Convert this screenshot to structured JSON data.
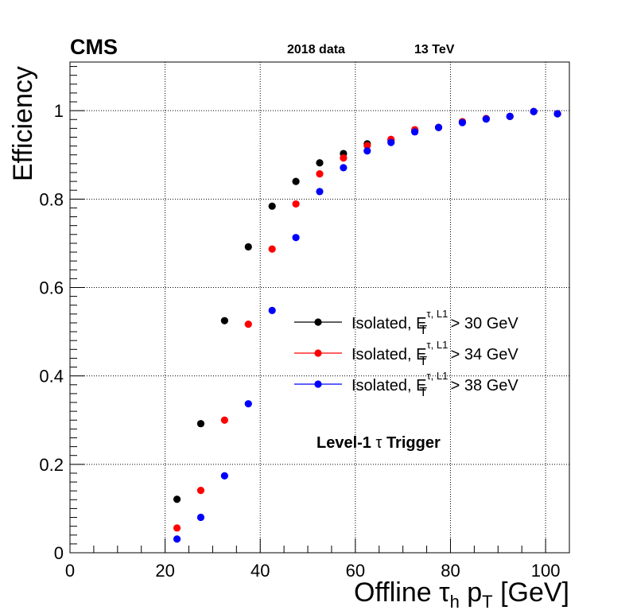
{
  "header": {
    "experiment": "CMS",
    "dataset": "2018 data",
    "energy": "13 TeV"
  },
  "chart_data": {
    "type": "scatter",
    "title": "",
    "xlabel": {
      "prefix": "Offline ",
      "tau": "τ",
      "sub": "h",
      "p": " p",
      "psub": "T",
      "suffix": " [GeV]"
    },
    "ylabel": "Efficiency",
    "xlim": [
      0,
      105
    ],
    "ylim": [
      0,
      1.11
    ],
    "grid": true,
    "x_ticks": [
      0,
      20,
      40,
      60,
      80,
      100
    ],
    "x_tick_labels": [
      "0",
      "20",
      "40",
      "60",
      "80",
      "100"
    ],
    "y_ticks": [
      0,
      0.2,
      0.4,
      0.6,
      0.8,
      1
    ],
    "y_tick_labels": [
      "0",
      "0.2",
      "0.4",
      "0.6",
      "0.8",
      "1"
    ],
    "legend_position": "middle-right",
    "annotation": {
      "prefix": "Level-1 ",
      "tau": "τ",
      "suffix": " Trigger"
    },
    "series": [
      {
        "name": "Isolated, E_T^{τ, L1} > 30 GeV",
        "label": {
          "prefix": "Isolated, E",
          "sup": "τ, L1",
          "sub": "T",
          "suffix": " > 30 GeV"
        },
        "color": "#000000",
        "points": [
          [
            22.5,
            0.121
          ],
          [
            27.5,
            0.292
          ],
          [
            32.5,
            0.525
          ],
          [
            37.5,
            0.692
          ],
          [
            42.5,
            0.784
          ],
          [
            47.5,
            0.84
          ],
          [
            52.5,
            0.882
          ],
          [
            57.5,
            0.903
          ],
          [
            62.5,
            0.925
          ],
          [
            67.5,
            0.933
          ],
          [
            72.5,
            0.955
          ],
          [
            77.5,
            0.962
          ],
          [
            82.5,
            0.975
          ],
          [
            87.5,
            0.982
          ],
          [
            92.5,
            0.987
          ],
          [
            97.5,
            0.998
          ],
          [
            102.5,
            0.993
          ]
        ]
      },
      {
        "name": "Isolated, E_T^{τ, L1} > 34 GeV",
        "label": {
          "prefix": "Isolated, E",
          "sup": "τ, L1",
          "sub": "T",
          "suffix": " > 34 GeV"
        },
        "color": "#ff0000",
        "points": [
          [
            22.5,
            0.056
          ],
          [
            27.5,
            0.141
          ],
          [
            32.5,
            0.3
          ],
          [
            37.5,
            0.517
          ],
          [
            42.5,
            0.687
          ],
          [
            47.5,
            0.789
          ],
          [
            52.5,
            0.857
          ],
          [
            57.5,
            0.893
          ],
          [
            62.5,
            0.921
          ],
          [
            67.5,
            0.935
          ],
          [
            72.5,
            0.957
          ],
          [
            77.5,
            0.962
          ],
          [
            82.5,
            0.975
          ],
          [
            87.5,
            0.982
          ],
          [
            92.5,
            0.987
          ],
          [
            97.5,
            0.998
          ],
          [
            102.5,
            0.993
          ]
        ]
      },
      {
        "name": "Isolated, E_T^{τ, L1} > 38 GeV",
        "label": {
          "prefix": "Isolated, E",
          "sup": "τ, L1",
          "sub": "T",
          "suffix": " > 38 GeV"
        },
        "color": "#0000ff",
        "points": [
          [
            22.5,
            0.031
          ],
          [
            27.5,
            0.08
          ],
          [
            32.5,
            0.174
          ],
          [
            37.5,
            0.337
          ],
          [
            42.5,
            0.548
          ],
          [
            47.5,
            0.713
          ],
          [
            52.5,
            0.817
          ],
          [
            57.5,
            0.871
          ],
          [
            62.5,
            0.909
          ],
          [
            67.5,
            0.928
          ],
          [
            72.5,
            0.952
          ],
          [
            77.5,
            0.962
          ],
          [
            82.5,
            0.973
          ],
          [
            87.5,
            0.981
          ],
          [
            92.5,
            0.987
          ],
          [
            97.5,
            0.998
          ],
          [
            102.5,
            0.993
          ]
        ]
      }
    ]
  }
}
